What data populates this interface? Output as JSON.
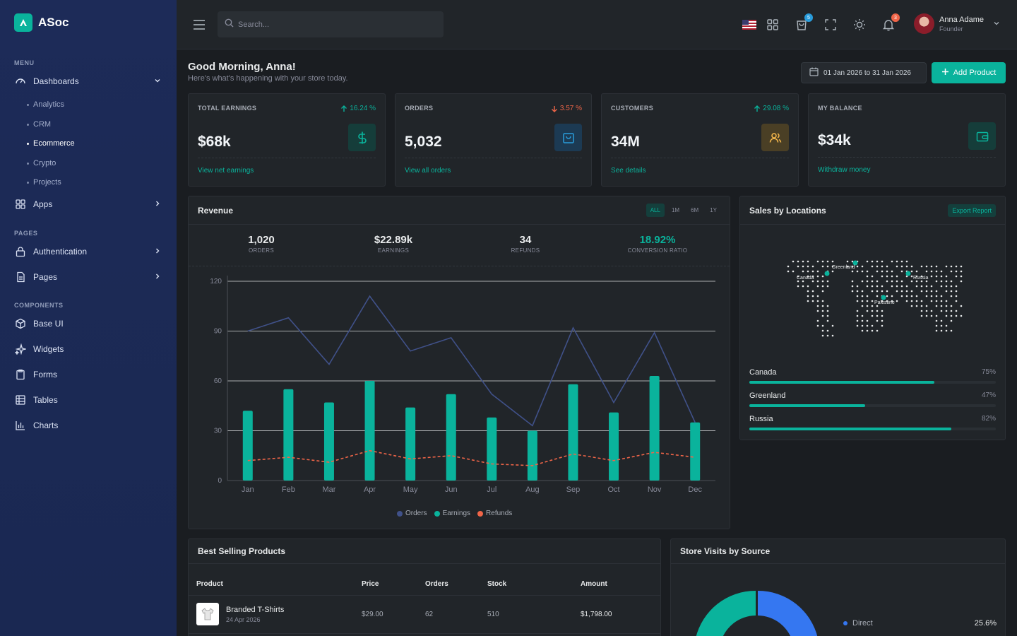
{
  "app": {
    "brand": "ASoc"
  },
  "sidebar": {
    "menu_title": "MENU",
    "dashboards": "Dashboards",
    "sub": [
      "Analytics",
      "CRM",
      "Ecommerce",
      "Crypto",
      "Projects"
    ],
    "apps": "Apps",
    "pages_title": "PAGES",
    "authentication": "Authentication",
    "pages": "Pages",
    "components_title": "COMPONENTS",
    "base_ui": "Base UI",
    "widgets": "Widgets",
    "forms": "Forms",
    "tables": "Tables",
    "charts": "Charts"
  },
  "topbar": {
    "search_placeholder": "Search...",
    "cart_count": "5",
    "notif_count": "3",
    "user_name": "Anna Adame",
    "user_role": "Founder"
  },
  "header": {
    "greeting": "Good Morning, Anna!",
    "subtitle": "Here's what's happening with your store today.",
    "date_range": "01 Jan 2026 to 31 Jan 2026",
    "add_product": "Add Product"
  },
  "kpis": [
    {
      "title": "TOTAL EARNINGS",
      "change": "16.24 %",
      "dir": "up",
      "value": "$68k",
      "link": "View net earnings",
      "icon": "dollar-icon"
    },
    {
      "title": "ORDERS",
      "change": "3.57 %",
      "dir": "down",
      "value": "5,032",
      "link": "View all orders",
      "icon": "shopping-bag-icon"
    },
    {
      "title": "CUSTOMERS",
      "change": "29.08 %",
      "dir": "up",
      "value": "34M",
      "link": "See details",
      "icon": "users-icon"
    },
    {
      "title": "MY BALANCE",
      "change": "",
      "dir": "",
      "value": "$34k",
      "link": "Withdraw money",
      "icon": "wallet-icon"
    }
  ],
  "revenue": {
    "title": "Revenue",
    "ranges": [
      "ALL",
      "1M",
      "6M",
      "1Y"
    ],
    "stats": [
      {
        "value": "1,020",
        "label": "ORDERS"
      },
      {
        "value": "$22.89k",
        "label": "EARNINGS"
      },
      {
        "value": "34",
        "label": "REFUNDS"
      },
      {
        "value": "18.92%",
        "label": "CONVERSION RATIO"
      }
    ]
  },
  "chart_data": {
    "type": "bar",
    "categories": [
      "Jan",
      "Feb",
      "Mar",
      "Apr",
      "May",
      "Jun",
      "Jul",
      "Aug",
      "Sep",
      "Oct",
      "Nov",
      "Dec"
    ],
    "yticks": [
      0,
      30,
      60,
      90,
      120
    ],
    "ylim": [
      0,
      120
    ],
    "grid": true,
    "legend_position": "bottom",
    "series": [
      {
        "name": "Orders",
        "kind": "line",
        "color": "#405189",
        "values": [
          90,
          98,
          70,
          111,
          78,
          86,
          52,
          33,
          92,
          47,
          89,
          35
        ]
      },
      {
        "name": "Earnings",
        "kind": "bar",
        "color": "#0ab39c",
        "values": [
          42,
          55,
          47,
          60,
          44,
          52,
          38,
          30,
          58,
          41,
          63,
          35
        ]
      },
      {
        "name": "Refunds",
        "kind": "dashed-line",
        "color": "#f06548",
        "values": [
          12,
          14,
          11,
          18,
          13,
          15,
          10,
          9,
          16,
          12,
          17,
          14
        ]
      }
    ]
  },
  "locations": {
    "title": "Sales by Locations",
    "export": "Export Report",
    "map_labels": [
      "Greenland",
      "Canada",
      "Russia",
      "Palestine"
    ],
    "rows": [
      {
        "name": "Canada",
        "pct": "75%",
        "value": 0.75
      },
      {
        "name": "Greenland",
        "pct": "47%",
        "value": 0.47
      },
      {
        "name": "Russia",
        "pct": "82%",
        "value": 0.82
      }
    ]
  },
  "products": {
    "title": "Best Selling Products",
    "columns": [
      "Product",
      "Price",
      "Orders",
      "Stock",
      "Amount"
    ],
    "rows": [
      {
        "name": "Branded T-Shirts",
        "date": "24 Apr 2026",
        "price": "$29.00",
        "orders": "62",
        "stock": "510",
        "amount": "$1,798.00"
      }
    ]
  },
  "visits": {
    "title": "Store Visits by Source",
    "legend": [
      {
        "label": "Direct",
        "pct": "25.6%"
      }
    ]
  },
  "colors": {
    "accent": "#0ab39c",
    "primary": "#405189",
    "danger": "#f06548",
    "warning": "#f7b84b"
  }
}
